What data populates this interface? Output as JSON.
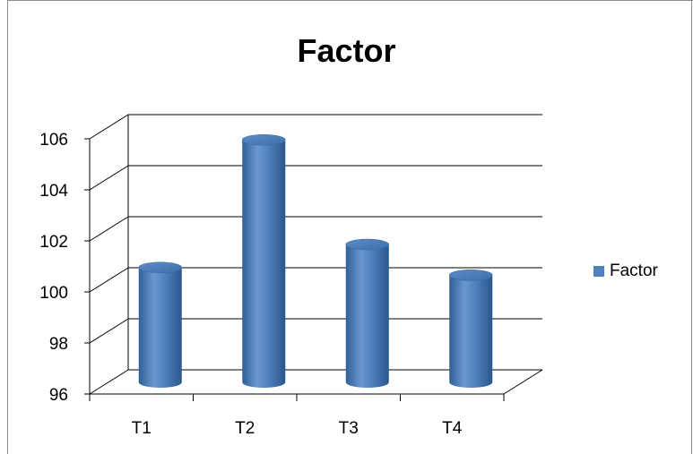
{
  "chart_data": {
    "type": "bar",
    "style": "3d-cylinder",
    "title": "Factor",
    "categories": [
      "T1",
      "T2",
      "T3",
      "T4"
    ],
    "series": [
      {
        "name": "Factor",
        "values": [
          100.5,
          105.5,
          101.4,
          100.2
        ]
      }
    ],
    "ylim": [
      96,
      106
    ],
    "y_ticks": [
      "96",
      "98",
      "100",
      "102",
      "104",
      "106"
    ],
    "xlabel": "",
    "ylabel": "",
    "grid": true,
    "legend": "right",
    "colors": {
      "bar": "#4f81bd",
      "bar_dark": "#2c5a91",
      "bar_light": "#7ea6d6",
      "grid": "#000000"
    }
  }
}
